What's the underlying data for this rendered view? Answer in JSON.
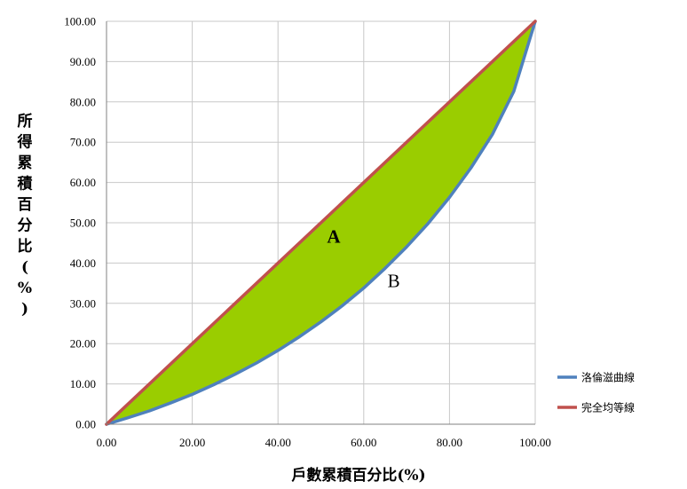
{
  "chart_data": {
    "type": "line",
    "title": "",
    "xlabel": "戶數累積百分比(%)",
    "ylabel": "所得累積百分比(%)",
    "xlim": [
      0,
      100
    ],
    "ylim": [
      0,
      100
    ],
    "x_ticks": [
      "0.00",
      "20.00",
      "40.00",
      "60.00",
      "80.00",
      "100.00"
    ],
    "y_ticks": [
      "0.00",
      "10.00",
      "20.00",
      "30.00",
      "40.00",
      "50.00",
      "60.00",
      "70.00",
      "80.00",
      "90.00",
      "100.00"
    ],
    "grid": true,
    "legend_position": "right",
    "fill_between_series_color": "#9acd00",
    "series": [
      {
        "name": "洛倫滋曲線",
        "color": "#4f81bd",
        "x": [
          0,
          5,
          10,
          15,
          20,
          25,
          30,
          35,
          40,
          45,
          50,
          55,
          60,
          65,
          70,
          75,
          80,
          85,
          90,
          95,
          100
        ],
        "y": [
          0,
          1.6,
          3.3,
          5.3,
          7.4,
          9.8,
          12.4,
          15.2,
          18.3,
          21.7,
          25.4,
          29.4,
          33.8,
          38.7,
          44.0,
          49.8,
          56.3,
          63.6,
          71.9,
          82.6,
          100
        ]
      },
      {
        "name": "完全均等線",
        "color": "#c0504d",
        "x": [
          0,
          100
        ],
        "y": [
          0,
          100
        ]
      }
    ],
    "annotations": [
      {
        "text": "A",
        "x": 53,
        "y": 45
      },
      {
        "text": "B",
        "x": 67,
        "y": 34
      }
    ]
  }
}
